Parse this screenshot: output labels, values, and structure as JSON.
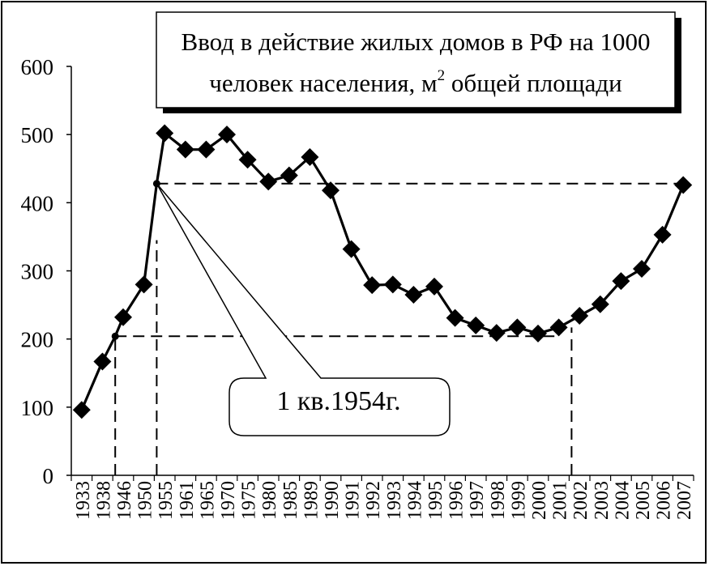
{
  "chart_data": {
    "type": "line",
    "title_line1": "Ввод в действие жилых домов в РФ на 1000",
    "title_line2_a": "человек населения, м",
    "title_line2_sup": "2",
    "title_line2_b": " общей площади",
    "ylim": [
      0,
      600
    ],
    "yticks": [
      "0",
      "100",
      "200",
      "300",
      "400",
      "500",
      "600"
    ],
    "categories": [
      "1933",
      "1938",
      "1946",
      "1950",
      "1955",
      "1961",
      "1965",
      "1970",
      "1975",
      "1980",
      "1985",
      "1989",
      "1990",
      "1991",
      "1992",
      "1993",
      "1994",
      "1995",
      "1996",
      "1997",
      "1998",
      "1999",
      "2000",
      "2001",
      "2002",
      "2003",
      "2004",
      "2005",
      "2006",
      "2007"
    ],
    "values": [
      96,
      167,
      232,
      280,
      502,
      478,
      478,
      500,
      463,
      431,
      440,
      467,
      418,
      332,
      279,
      280,
      265,
      277,
      231,
      220,
      209,
      217,
      208,
      217,
      234,
      251,
      285,
      303,
      353,
      426
    ],
    "extra_points": [
      {
        "after_category": "1938",
        "value": 204
      },
      {
        "after_category": "1950",
        "value": 428
      }
    ],
    "reference_lines": [
      {
        "kind": "h",
        "value": 204,
        "from_category": "1938",
        "to_category": "2001"
      },
      {
        "kind": "h",
        "value": 428,
        "from_category": "1950",
        "to_category": "2007"
      },
      {
        "kind": "v",
        "category": "1938",
        "from_value": 0,
        "to_value": 204
      },
      {
        "kind": "v",
        "category": "1950",
        "from_value": 0,
        "to_value": 345
      },
      {
        "kind": "v",
        "category": "2001",
        "from_value": 0,
        "to_value": 217
      }
    ],
    "annotation": "1 кв.1954г.",
    "grid": false,
    "legend": "none"
  }
}
